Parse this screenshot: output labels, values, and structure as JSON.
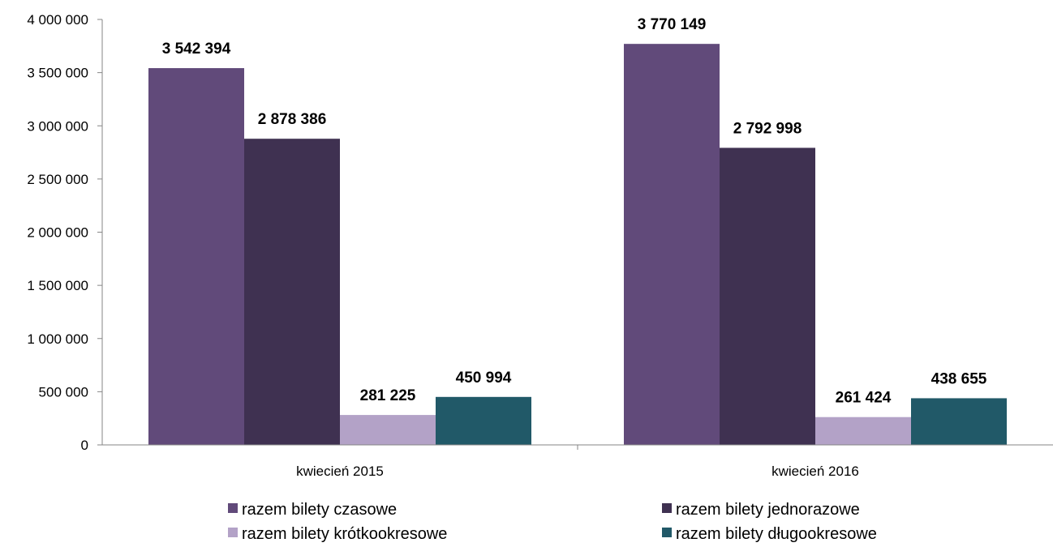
{
  "chart_data": {
    "type": "bar",
    "categories": [
      "kwiecień 2015",
      "kwiecień 2016"
    ],
    "series": [
      {
        "name": "razem bilety czasowe",
        "color": "#614a7a",
        "values": [
          3542394,
          3770149
        ],
        "labels": [
          "3 542 394",
          "3 770 149"
        ]
      },
      {
        "name": "razem bilety jednorazowe",
        "color": "#3f3151",
        "values": [
          2878386,
          2792998
        ],
        "labels": [
          "2 878 386",
          "2 792 998"
        ]
      },
      {
        "name": "razem bilety krótkookresowe",
        "color": "#b3a2c7",
        "values": [
          281225,
          261424
        ],
        "labels": [
          "281 225",
          "261 424"
        ]
      },
      {
        "name": "razem bilety długookresowe",
        "color": "#215968",
        "values": [
          450994,
          438655
        ],
        "labels": [
          "450 994",
          "438 655"
        ]
      }
    ],
    "yticks": [
      0,
      500000,
      1000000,
      1500000,
      2000000,
      2500000,
      3000000,
      3500000,
      4000000
    ],
    "ytick_labels": [
      "0",
      "500 000",
      "1 000 000",
      "1 500 000",
      "2 000 000",
      "2 500 000",
      "3 000 000",
      "3 500 000",
      "4 000 000"
    ],
    "ylim": [
      0,
      4000000
    ],
    "grid": false,
    "legend_position": "bottom"
  }
}
